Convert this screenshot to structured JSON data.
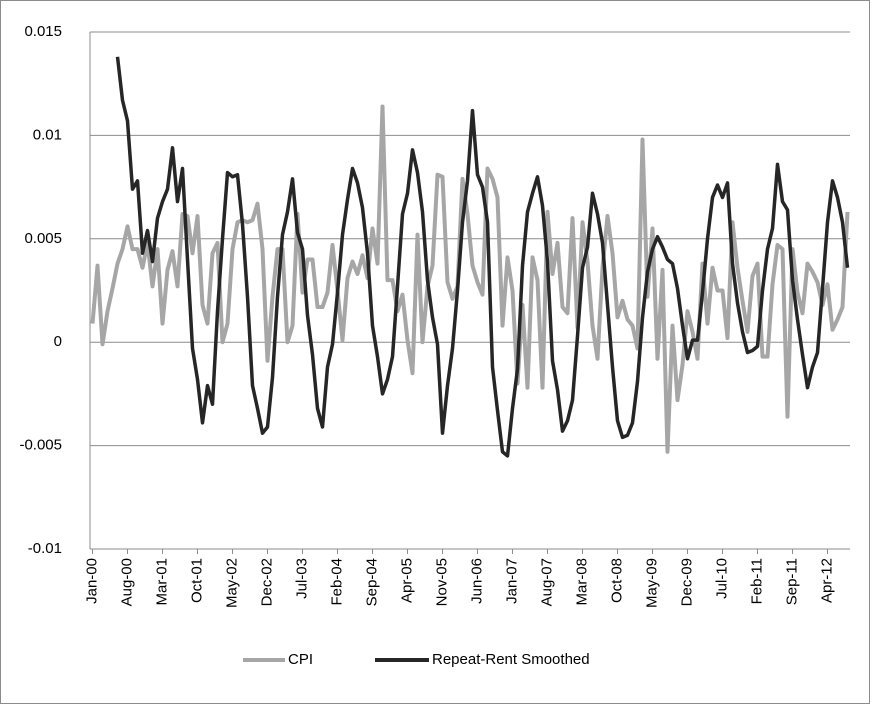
{
  "chart_data": {
    "type": "line",
    "categories": [
      "Jan-00",
      null,
      null,
      null,
      null,
      null,
      null,
      "Aug-00",
      null,
      null,
      null,
      null,
      null,
      null,
      "Mar-01",
      null,
      null,
      null,
      null,
      null,
      null,
      "Oct-01",
      null,
      null,
      null,
      null,
      null,
      null,
      "May-02",
      null,
      null,
      null,
      null,
      null,
      null,
      "Dec-02",
      null,
      null,
      null,
      null,
      null,
      null,
      "Jul-03",
      null,
      null,
      null,
      null,
      null,
      null,
      "Feb-04",
      null,
      null,
      null,
      null,
      null,
      null,
      "Sep-04",
      null,
      null,
      null,
      null,
      null,
      null,
      "Apr-05",
      null,
      null,
      null,
      null,
      null,
      null,
      "Nov-05",
      null,
      null,
      null,
      null,
      null,
      null,
      "Jun-06",
      null,
      null,
      null,
      null,
      null,
      null,
      "Jan-07",
      null,
      null,
      null,
      null,
      null,
      null,
      "Aug-07",
      null,
      null,
      null,
      null,
      null,
      null,
      "Mar-08",
      null,
      null,
      null,
      null,
      null,
      null,
      "Oct-08",
      null,
      null,
      null,
      null,
      null,
      null,
      "May-09",
      null,
      null,
      null,
      null,
      null,
      null,
      "Dec-09",
      null,
      null,
      null,
      null,
      null,
      null,
      "Jul-10",
      null,
      null,
      null,
      null,
      null,
      null,
      "Feb-11",
      null,
      null,
      null,
      null,
      null,
      null,
      "Sep-11",
      null,
      null,
      null,
      null,
      null,
      null,
      "Apr-12",
      null,
      null,
      null,
      null
    ],
    "series": [
      {
        "name": "CPI",
        "color": "#a6a6a6",
        "values": [
          0.0009,
          0.0037,
          -0.0001,
          0.0015,
          0.0026,
          0.0038,
          0.0045,
          0.0056,
          0.0045,
          0.0045,
          0.0036,
          0.0048,
          0.0027,
          0.0045,
          0.0009,
          0.0035,
          0.0044,
          0.0027,
          0.0062,
          0.0061,
          0.0043,
          0.0061,
          0.0018,
          0.0009,
          0.0043,
          0.0048,
          0,
          0.0009,
          0.0045,
          0.0058,
          0.0059,
          0.0058,
          0.0059,
          0.0067,
          0.0045,
          -0.0009,
          0.0022,
          0.0045,
          0.0045,
          0,
          0.0008,
          0.0062,
          0.0024,
          0.004,
          0.004,
          0.0017,
          0.0017,
          0.0024,
          0.0047,
          0.0025,
          0.0001,
          0.0031,
          0.0039,
          0.0033,
          0.0042,
          0.0031,
          0.0055,
          0.0038,
          0.0114,
          0.003,
          0.003,
          0.0015,
          0.0023,
          0.0001,
          -0.0015,
          0.0052,
          0,
          0.0027,
          0.0037,
          0.0081,
          0.008,
          0.0029,
          0.0021,
          0.0027,
          0.0079,
          0.0062,
          0.0037,
          0.0029,
          0.0023,
          0.0084,
          0.0079,
          0.007,
          0.0008,
          0.0041,
          0.0025,
          -0.002,
          0.0018,
          -0.0022,
          0.0041,
          0.003,
          -0.0022,
          0.0063,
          0.0033,
          0.0048,
          0.0017,
          0.0014,
          0.006,
          0.0007,
          0.0058,
          0.0039,
          0.0008,
          -0.0008,
          0.0036,
          0.0061,
          0.0043,
          0.0012,
          0.002,
          0.0011,
          0.0008,
          -0.0003,
          0.0098,
          0.0022,
          0.0055,
          -0.0008,
          0.0035,
          -0.0053,
          0.0008,
          -0.0028,
          -0.0011,
          0.0015,
          0.0005,
          -0.0008,
          0.0038,
          0.0009,
          0.0036,
          0.0025,
          0.0025,
          0.0002,
          0.0058,
          0.0036,
          0.002,
          0.0005,
          0.0032,
          0.0038,
          -0.0007,
          -0.0007,
          0.0028,
          0.0047,
          0.0045,
          -0.0036,
          0.0045,
          0.0024,
          0.0014,
          0.0038,
          0.0034,
          0.0029,
          0.0018,
          0.0028,
          0.0006,
          0.0011,
          0.0017,
          0.0063
        ]
      },
      {
        "name": "Repeat-Rent Smoothed",
        "color": "#262626",
        "values": [
          null,
          null,
          null,
          null,
          null,
          0.0138,
          0.0117,
          0.0107,
          0.0074,
          0.0078,
          0.0043,
          0.0054,
          0.0039,
          0.006,
          0.0068,
          0.0074,
          0.0094,
          0.0068,
          0.0084,
          0.004,
          -0.0003,
          -0.0018,
          -0.0039,
          -0.0021,
          -0.003,
          0.0015,
          0.005,
          0.0082,
          0.008,
          0.0081,
          0.0057,
          0.0022,
          -0.0021,
          -0.0032,
          -0.0044,
          -0.0041,
          -0.0017,
          0.0022,
          0.0052,
          0.0063,
          0.0079,
          0.0053,
          0.0045,
          0.0013,
          -0.0006,
          -0.0032,
          -0.0041,
          -0.0012,
          -0.0001,
          0.0024,
          0.0052,
          0.0069,
          0.0084,
          0.0077,
          0.0065,
          0.0043,
          0.0008,
          -0.0007,
          -0.0025,
          -0.0018,
          -0.0007,
          0.0027,
          0.0062,
          0.0072,
          0.0093,
          0.0082,
          0.0063,
          0.003,
          0.0012,
          -0.0001,
          -0.0044,
          -0.0021,
          -0.0003,
          0.0025,
          0.0058,
          0.0078,
          0.0112,
          0.0081,
          0.0075,
          0.0058,
          -0.0012,
          -0.0033,
          -0.0053,
          -0.0055,
          -0.0032,
          -0.0013,
          0.0037,
          0.0063,
          0.0072,
          0.008,
          0.0066,
          0.0039,
          -0.0009,
          -0.0023,
          -0.0043,
          -0.0038,
          -0.0028,
          0.0003,
          0.0036,
          0.0046,
          0.0072,
          0.0062,
          0.0048,
          0.0018,
          -0.0012,
          -0.0038,
          -0.0046,
          -0.0045,
          -0.0039,
          -0.0019,
          0.0012,
          0.0034,
          0.0045,
          0.0051,
          0.0046,
          0.004,
          0.0038,
          0.0026,
          0.0008,
          -0.0008,
          0.0001,
          0.0001,
          0.0024,
          0.005,
          0.007,
          0.0076,
          0.007,
          0.0077,
          0.0038,
          0.0019,
          0.0005,
          -0.0005,
          -0.0004,
          -0.0002,
          0.0025,
          0.0045,
          0.0055,
          0.0086,
          0.0068,
          0.0064,
          0.003,
          0.0011,
          -0.0006,
          -0.0022,
          -0.0012,
          -0.0005,
          0.0026,
          0.0058,
          0.0078,
          0.007,
          0.0058,
          0.0036
        ]
      }
    ],
    "ylim": [
      -0.01,
      0.015
    ],
    "yticks": [
      -0.01,
      -0.005,
      0,
      0.005,
      0.01,
      0.015
    ],
    "grid": true,
    "legend": "bottom"
  }
}
